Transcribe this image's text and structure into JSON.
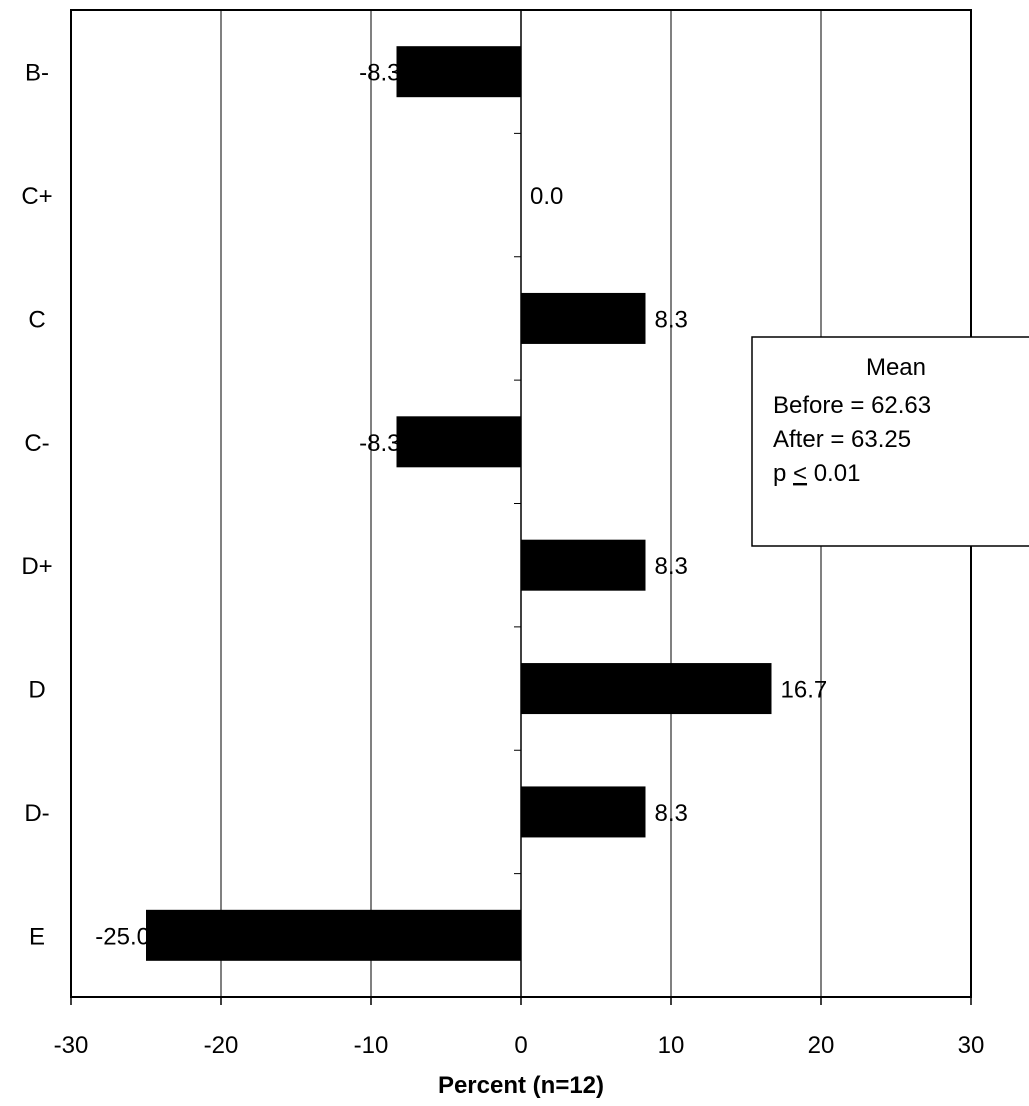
{
  "chart_data": {
    "type": "bar",
    "orientation": "horizontal",
    "categories": [
      "B-",
      "C+",
      "C",
      "C-",
      "D+",
      "D",
      "D-",
      "E"
    ],
    "values": [
      -8.3,
      0.0,
      8.3,
      -8.3,
      8.3,
      16.7,
      8.3,
      -25.0
    ],
    "value_labels": [
      "-8.3",
      "0.0",
      "8.3",
      "-8.3",
      "8.3",
      "16.7",
      "8.3",
      "-25.0"
    ],
    "xlabel": "Percent (n=12)",
    "ylabel": "",
    "xlim": [
      -30,
      30
    ],
    "x_ticks": [
      -30,
      -20,
      -10,
      0,
      10,
      20,
      30
    ],
    "x_tick_labels": [
      "-30",
      "-20",
      "-10",
      "0",
      "10",
      "20",
      "30"
    ],
    "grid": "vertical",
    "bar_color": "#000000",
    "annotation": {
      "title": "Mean",
      "lines": [
        "Before = 62.63",
        "After = 63.25"
      ],
      "p_prefix": "p ",
      "p_symbol": "<",
      "p_value": " 0.01"
    }
  }
}
